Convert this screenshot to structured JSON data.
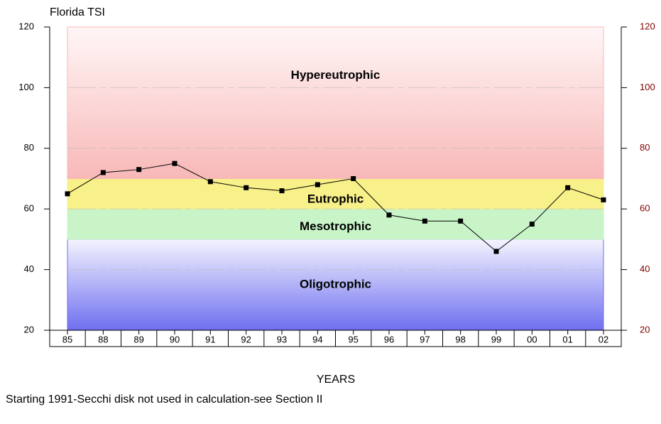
{
  "chart_data": {
    "type": "line",
    "title": "Florida TSI",
    "xlabel": "YEARS",
    "note": "Starting 1991-Secchi disk not used in calculation-see Section II",
    "categories": [
      "85",
      "88",
      "89",
      "90",
      "91",
      "92",
      "93",
      "94",
      "95",
      "96",
      "97",
      "98",
      "99",
      "00",
      "01",
      "02"
    ],
    "series": [
      {
        "name": "TSI",
        "color": "#000000",
        "values": [
          65,
          72,
          73,
          75,
          69,
          67,
          66,
          68,
          70,
          58,
          56,
          56,
          46,
          55,
          67,
          63
        ]
      }
    ],
    "ylim": [
      20,
      120
    ],
    "yticks": [
      20,
      40,
      60,
      80,
      100,
      120
    ],
    "y2lim": [
      20,
      120
    ],
    "y2ticks": [
      20,
      40,
      60,
      80,
      100,
      120
    ],
    "y2color": "#800000",
    "zones": [
      {
        "name": "Oligotrophic",
        "from": 20,
        "to": 50,
        "color": "#6f6ff0"
      },
      {
        "name": "Mesotrophic",
        "from": 50,
        "to": 60,
        "color": "#c8f4c8"
      },
      {
        "name": "Eutrophic",
        "from": 60,
        "to": 70,
        "color": "#f8f088"
      },
      {
        "name": "Hypereutrophic",
        "from": 70,
        "to": 120,
        "color": "#f8b8b8"
      }
    ],
    "grid": true
  }
}
